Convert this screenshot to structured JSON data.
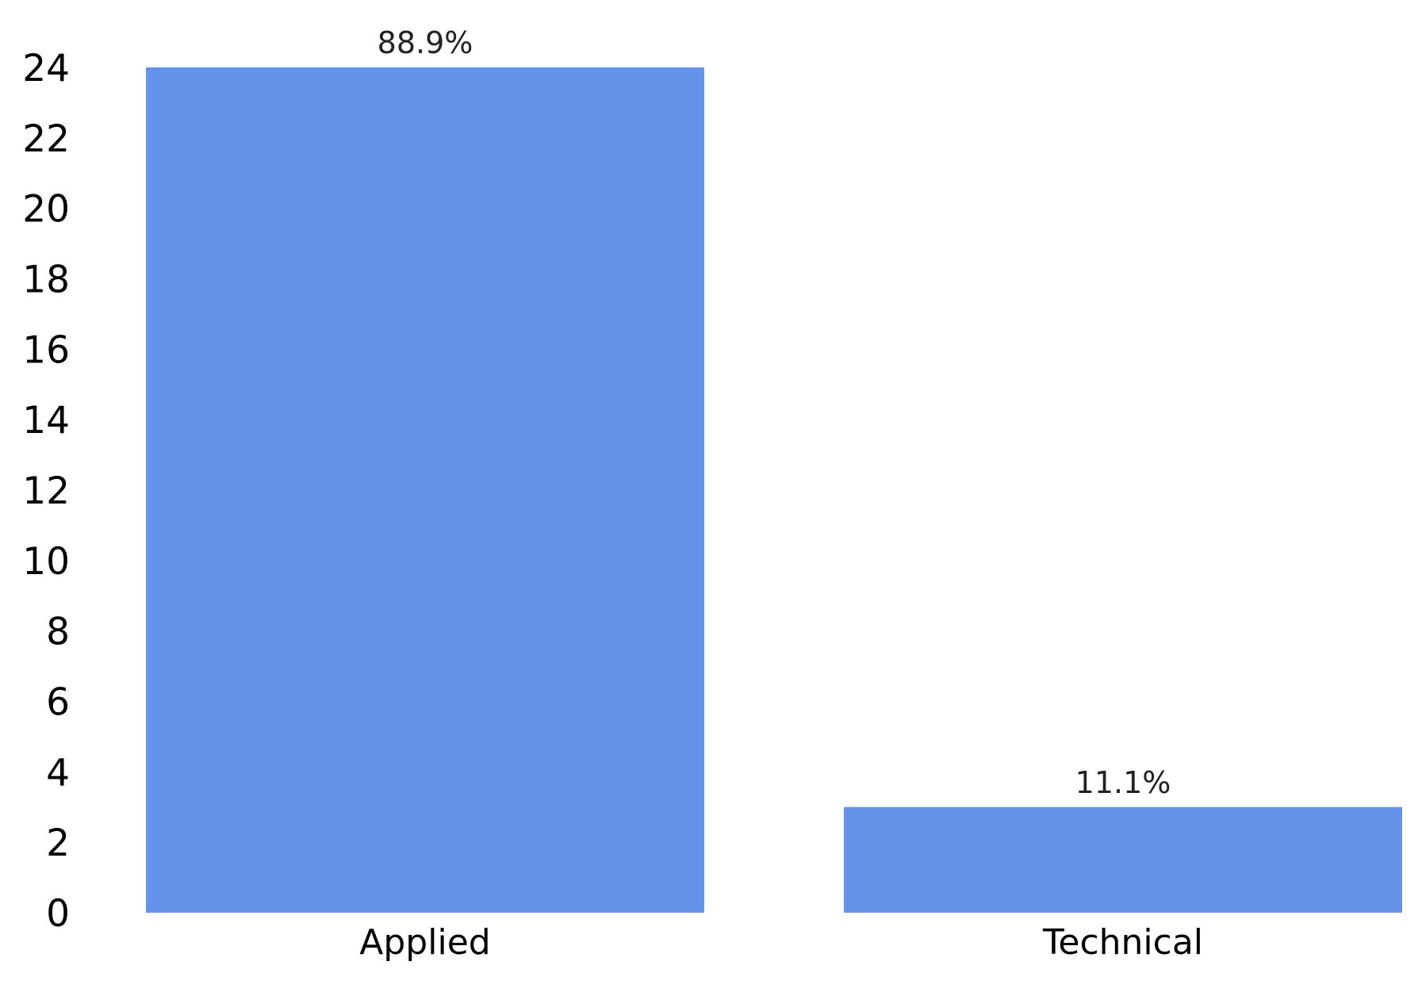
{
  "chart_data": {
    "type": "bar",
    "categories": [
      "Applied",
      "Technical"
    ],
    "values": [
      24,
      3
    ],
    "data_labels": [
      "88.9%",
      "11.1%"
    ],
    "title": "",
    "xlabel": "",
    "ylabel": "",
    "ylim": [
      0,
      24
    ],
    "yticks": [
      0,
      2,
      4,
      6,
      8,
      10,
      12,
      14,
      16,
      18,
      20,
      22,
      24
    ],
    "grid": false,
    "legend": "none",
    "colors": {
      "bar": "#6494EA"
    }
  }
}
